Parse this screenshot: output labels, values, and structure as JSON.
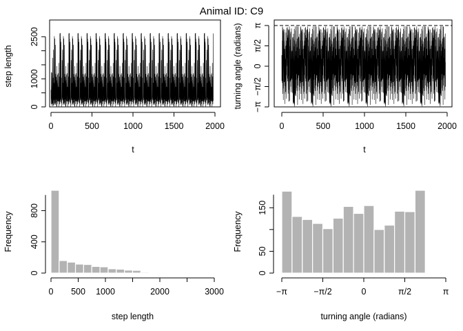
{
  "figure": {
    "title": "Animal ID: C9"
  },
  "chart_data": [
    {
      "type": "line",
      "panel": "top-left",
      "xlabel": "t",
      "ylabel": "step length",
      "xlim": [
        0,
        2000
      ],
      "ylim": [
        0,
        2900
      ],
      "xticks": [
        0,
        500,
        1000,
        1500,
        2000
      ],
      "xtick_labels": [
        "0",
        "500",
        "1000",
        "1500",
        "2000"
      ],
      "yticks": [
        0,
        500,
        1000,
        1500,
        2000,
        2500
      ],
      "ytick_labels": [
        "0",
        "",
        "1000",
        "",
        "",
        "2500"
      ],
      "n_points": 1980,
      "max_value": 2850,
      "note_visible": "dense spike series, most values below ~1000 with frequent spikes up to ~2800"
    },
    {
      "type": "line",
      "panel": "top-right",
      "xlabel": "t",
      "ylabel": "turning angle (radians)",
      "xlim": [
        0,
        2000
      ],
      "ylim": [
        -3.14159,
        3.14159
      ],
      "xticks": [
        0,
        500,
        1000,
        1500,
        2000
      ],
      "xtick_labels": [
        "0",
        "500",
        "1000",
        "1500",
        "2000"
      ],
      "yticks": [
        -3.14159,
        -1.5708,
        0,
        1.5708,
        3.14159
      ],
      "ytick_labels": [
        "−π",
        "−π/2",
        "0",
        "π/2",
        "π"
      ],
      "reference_lines": [
        -3.14159,
        3.14159
      ],
      "n_points": 1980
    },
    {
      "type": "bar",
      "panel": "bottom-left",
      "xlabel": "step length",
      "ylabel": "Frequency",
      "bin_width": 150,
      "bin_start": 0,
      "values": [
        1060,
        160,
        140,
        115,
        110,
        85,
        80,
        55,
        50,
        38,
        35,
        12,
        6,
        4,
        3,
        2
      ],
      "xlim": [
        0,
        3000
      ],
      "ylim": [
        0,
        1060
      ],
      "xticks": [
        0,
        500,
        1000,
        2000,
        3000
      ],
      "xtick_labels": [
        "0",
        "500",
        "1000",
        "2000",
        "3000"
      ],
      "xaxis_minor_ticks": [
        1500,
        2500
      ],
      "yticks": [
        0,
        400,
        800
      ],
      "ytick_labels": [
        "0",
        "400",
        "800"
      ]
    },
    {
      "type": "bar",
      "panel": "bottom-right",
      "xlabel": "turning angle (radians)",
      "ylabel": "Frequency",
      "bin_start": -3.14159,
      "bin_width": 0.3927,
      "values": [
        188,
        130,
        123,
        114,
        102,
        126,
        153,
        137,
        155,
        100,
        110,
        142,
        141,
        190
      ],
      "xlim": [
        -3.14159,
        3.14159
      ],
      "ylim": [
        0,
        190
      ],
      "xticks": [
        -3.14159,
        -1.5708,
        0,
        1.5708,
        3.14159
      ],
      "xtick_labels": [
        "−π",
        "−π/2",
        "0",
        "π/2",
        "π"
      ],
      "yticks": [
        0,
        50,
        100,
        150
      ],
      "ytick_labels": [
        "0",
        "50",
        "",
        "150"
      ]
    }
  ]
}
